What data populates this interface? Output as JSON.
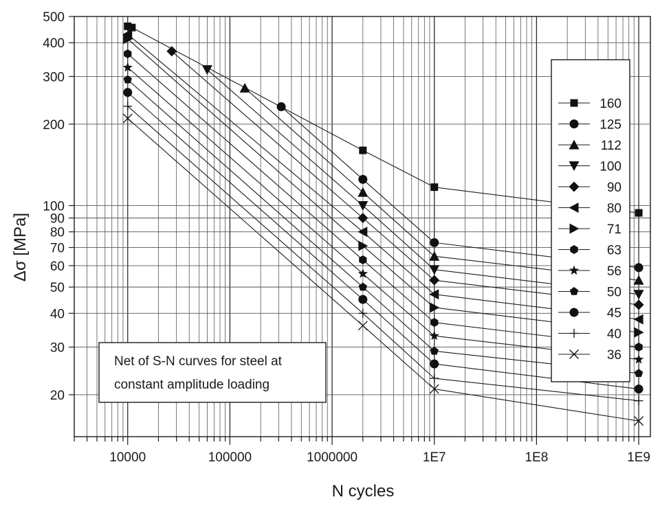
{
  "chart_data": {
    "type": "line",
    "xlabel": "N cycles",
    "ylabel": "Δσ [MPa]",
    "x_scale": "log",
    "y_scale": "log",
    "xlim": [
      3000,
      1300000000
    ],
    "ylim": [
      14,
      500
    ],
    "grid": true,
    "legend_position": "right",
    "annotation": "Net of S-N curves for steel at constant amplitude loading",
    "annotation_lines": [
      "Net of S-N curves for steel at",
      "constant amplitude loading"
    ],
    "x_tick_labels": [
      {
        "value": 10000,
        "label": "10000"
      },
      {
        "value": 100000,
        "label": "100000"
      },
      {
        "value": 1000000,
        "label": "1000000"
      },
      {
        "value": 10000000,
        "label": "1E7"
      },
      {
        "value": 100000000,
        "label": "1E8"
      },
      {
        "value": 1000000000,
        "label": "1E9"
      }
    ],
    "y_tick_labels": [
      {
        "value": 500,
        "label": "500"
      },
      {
        "value": 400,
        "label": "400"
      },
      {
        "value": 300,
        "label": "300"
      },
      {
        "value": 200,
        "label": "200"
      },
      {
        "value": 100,
        "label": "100"
      },
      {
        "value": 90,
        "label": "90"
      },
      {
        "value": 80,
        "label": "80"
      },
      {
        "value": 70,
        "label": "70"
      },
      {
        "value": 60,
        "label": "60"
      },
      {
        "value": 50,
        "label": "50"
      },
      {
        "value": 40,
        "label": "40"
      },
      {
        "value": 30,
        "label": "30"
      },
      {
        "value": 20,
        "label": "20"
      }
    ],
    "series": [
      {
        "name": "160",
        "marker": "square",
        "x": [
          10000,
          11000,
          2000000,
          10000000,
          1000000000
        ],
        "y": [
          460,
          455,
          160,
          117,
          94
        ]
      },
      {
        "name": "125",
        "marker": "circle",
        "x": [
          318000,
          2000000,
          10000000,
          1000000000
        ],
        "y": [
          232,
          125,
          73,
          59
        ]
      },
      {
        "name": "112",
        "marker": "triangle-up",
        "x": [
          140000,
          2000000,
          10000000,
          1000000000
        ],
        "y": [
          272,
          112,
          65,
          53
        ]
      },
      {
        "name": "100",
        "marker": "triangle-down",
        "x": [
          60000,
          2000000,
          10000000,
          1000000000
        ],
        "y": [
          318,
          100,
          58,
          47
        ]
      },
      {
        "name": "90",
        "marker": "diamond",
        "x": [
          27000,
          2000000,
          10000000,
          1000000000
        ],
        "y": [
          372,
          90,
          53,
          43
        ]
      },
      {
        "name": "80",
        "marker": "triangle-left",
        "x": [
          10000,
          2000000,
          10000000,
          1000000000
        ],
        "y": [
          430,
          80,
          47,
          38
        ]
      },
      {
        "name": "71",
        "marker": "triangle-right",
        "x": [
          10000,
          2000000,
          10000000,
          1000000000
        ],
        "y": [
          413,
          71,
          42,
          34
        ]
      },
      {
        "name": "63",
        "marker": "hexagon",
        "x": [
          10000,
          2000000,
          10000000,
          1000000000
        ],
        "y": [
          364,
          63,
          37,
          30
        ]
      },
      {
        "name": "56",
        "marker": "star",
        "x": [
          10000,
          2000000,
          10000000,
          1000000000
        ],
        "y": [
          324,
          56,
          33,
          27
        ]
      },
      {
        "name": "50",
        "marker": "pentagon",
        "x": [
          10000,
          2000000,
          10000000,
          1000000000
        ],
        "y": [
          292,
          50,
          29,
          24
        ]
      },
      {
        "name": "45",
        "marker": "circle",
        "x": [
          10000,
          2000000,
          10000000,
          1000000000
        ],
        "y": [
          262,
          45,
          26,
          21
        ]
      },
      {
        "name": "40",
        "marker": "plus",
        "x": [
          10000,
          2000000,
          10000000,
          1000000000
        ],
        "y": [
          233,
          40,
          23,
          19
        ]
      },
      {
        "name": "36",
        "marker": "x",
        "x": [
          10000,
          2000000,
          10000000,
          1000000000
        ],
        "y": [
          210,
          36,
          21,
          16
        ]
      }
    ]
  }
}
